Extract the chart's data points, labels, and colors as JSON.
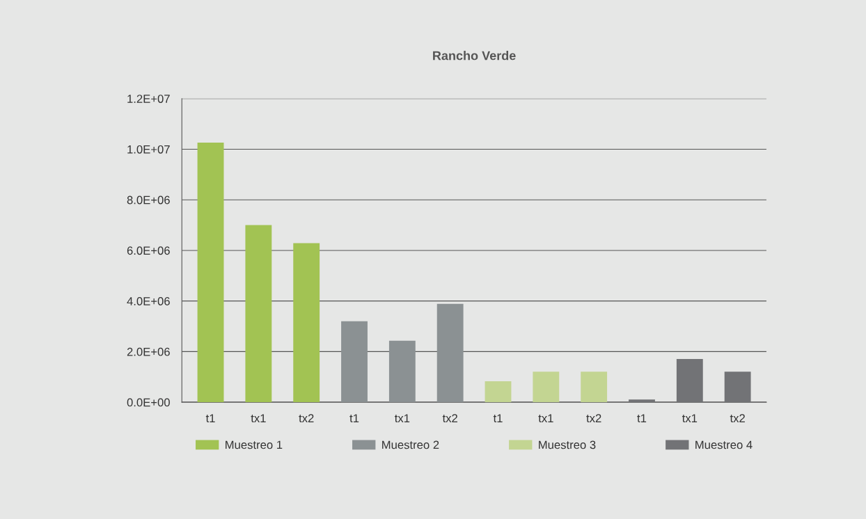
{
  "chart_data": {
    "type": "bar",
    "title": "Rancho Verde",
    "categories": [
      "t1",
      "tx1",
      "tx2",
      "t1",
      "tx1",
      "tx2",
      "t1",
      "tx1",
      "tx2",
      "t1",
      "tx1",
      "tx2"
    ],
    "series": [
      {
        "name": "Muestreo 1",
        "color": "#a2c353",
        "values": [
          10260000,
          7000000,
          6290000,
          null,
          null,
          null,
          null,
          null,
          null,
          null,
          null,
          null
        ]
      },
      {
        "name": "Muestreo 2",
        "color": "#8b9193",
        "values": [
          null,
          null,
          null,
          3200000,
          2430000,
          3890000,
          null,
          null,
          null,
          null,
          null,
          null
        ]
      },
      {
        "name": "Muestreo 3",
        "color": "#c3d592",
        "values": [
          null,
          null,
          null,
          null,
          null,
          null,
          830000,
          1210000,
          1210000,
          null,
          null,
          null
        ]
      },
      {
        "name": "Muestreo 4",
        "color": "#727376",
        "values": [
          null,
          null,
          null,
          null,
          null,
          null,
          null,
          null,
          null,
          110000,
          1710000,
          1210000
        ]
      }
    ],
    "ylim": [
      0,
      12000000
    ],
    "yticks": [
      {
        "value": 0,
        "label": "0.0E+00"
      },
      {
        "value": 2000000,
        "label": "2.0E+06"
      },
      {
        "value": 4000000,
        "label": "4.0E+06"
      },
      {
        "value": 6000000,
        "label": "6.0E+06"
      },
      {
        "value": 8000000,
        "label": "8.0E+06"
      },
      {
        "value": 10000000,
        "label": "1.0E+07"
      },
      {
        "value": 12000000,
        "label": "1.2E+07"
      }
    ],
    "grid": "y",
    "legend": "bottom"
  }
}
